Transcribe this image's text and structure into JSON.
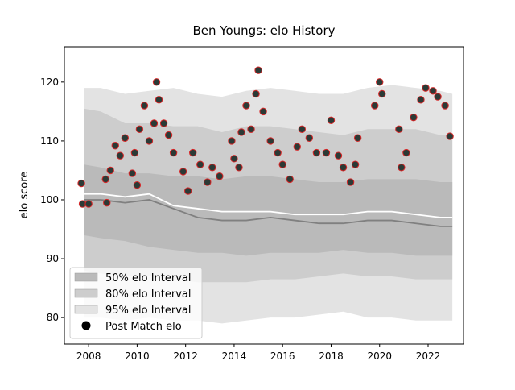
{
  "chart_data": {
    "type": "band-scatter",
    "title": "Ben Youngs: elo History",
    "ylabel": "elo score",
    "xlim": [
      2007.0,
      2023.46
    ],
    "ylim": [
      75.5,
      126.0
    ],
    "xticks": [
      2008,
      2010,
      2012,
      2014,
      2016,
      2018,
      2020,
      2022
    ],
    "yticks": [
      80,
      90,
      100,
      110,
      120
    ],
    "x": [
      2007.8,
      2008.5,
      2009.5,
      2010.5,
      2011.5,
      2012.5,
      2013.5,
      2014.5,
      2015.5,
      2016.5,
      2017.5,
      2018.5,
      2019.5,
      2020.5,
      2021.5,
      2022.5,
      2023.0
    ],
    "bands": [
      {
        "name": "95% elo Interval",
        "color": "#e3e3e3",
        "upper": [
          119,
          119,
          118,
          118.5,
          119,
          118,
          117.5,
          118.5,
          119,
          118.5,
          118,
          118,
          119,
          119.5,
          119,
          118.5,
          118
        ],
        "lower": [
          80,
          80,
          79.5,
          80,
          79.5,
          79.5,
          79,
          79.5,
          80,
          80,
          80.5,
          81,
          80,
          80,
          79.5,
          79.5,
          79.5
        ]
      },
      {
        "name": "80% elo Interval",
        "color": "#cdcdcd",
        "upper": [
          115.5,
          115,
          113,
          113,
          112.5,
          112.5,
          111.5,
          112.5,
          112.5,
          112,
          111.5,
          111,
          112,
          112,
          112,
          111,
          111
        ],
        "lower": [
          88,
          87.5,
          87,
          87,
          86.5,
          86,
          86,
          86,
          86.5,
          86.5,
          87,
          87.5,
          87,
          87,
          86.5,
          86.5,
          86.5
        ]
      },
      {
        "name": "50% elo Interval",
        "color": "#bababa",
        "upper": [
          106,
          105.5,
          104.5,
          104.5,
          104,
          104,
          103.5,
          104,
          104,
          103.5,
          103,
          103,
          103.5,
          103.5,
          103.5,
          103,
          103
        ],
        "lower": [
          94,
          93.5,
          93,
          92,
          91.5,
          91,
          91,
          90.5,
          91,
          91,
          91,
          91.5,
          91,
          91,
          90.5,
          90.5,
          90.5
        ]
      }
    ],
    "lines": [
      {
        "color": "#ffffff",
        "values": [
          101,
          101,
          100.5,
          101,
          99,
          98.5,
          98,
          98,
          98,
          97.5,
          97.5,
          97.5,
          98,
          98,
          97.5,
          97,
          97
        ]
      },
      {
        "color": "#808080",
        "values": [
          100,
          100,
          99.5,
          100,
          98.5,
          97,
          96.5,
          96.5,
          97,
          96.5,
          96,
          96,
          96.5,
          96.5,
          96,
          95.5,
          95.5
        ]
      }
    ],
    "points": {
      "name": "Post Match elo",
      "color": "#2b3a36",
      "edge_color": "#d62728",
      "x": [
        2007.7,
        2007.75,
        2008.0,
        2008.7,
        2008.75,
        2008.9,
        2009.1,
        2009.3,
        2009.5,
        2009.8,
        2009.9,
        2010.0,
        2010.1,
        2010.3,
        2010.5,
        2010.7,
        2010.8,
        2010.9,
        2011.1,
        2011.3,
        2011.5,
        2011.9,
        2012.1,
        2012.3,
        2012.6,
        2012.9,
        2013.1,
        2013.4,
        2013.9,
        2014.0,
        2014.2,
        2014.3,
        2014.5,
        2014.7,
        2014.9,
        2015.0,
        2015.2,
        2015.5,
        2015.8,
        2016.0,
        2016.3,
        2016.6,
        2016.8,
        2017.1,
        2017.4,
        2017.8,
        2018.0,
        2018.3,
        2018.5,
        2018.8,
        2019.0,
        2019.1,
        2019.8,
        2020.0,
        2020.1,
        2020.8,
        2020.9,
        2021.1,
        2021.4,
        2021.7,
        2021.9,
        2022.2,
        2022.4,
        2022.7,
        2022.9
      ],
      "y": [
        102.8,
        99.3,
        99.3,
        103.5,
        99.5,
        105,
        109.2,
        107.5,
        110.5,
        104.5,
        108,
        102.5,
        112,
        116,
        110,
        113,
        120,
        117,
        113,
        111,
        108,
        104.8,
        101.5,
        108,
        106,
        103,
        105.5,
        104,
        110,
        107,
        105.5,
        111.5,
        116,
        112,
        118,
        122,
        115,
        110,
        108,
        106,
        103.5,
        109,
        112,
        110.5,
        108,
        108,
        113.5,
        107.5,
        105.5,
        103,
        106,
        110.5,
        116,
        120,
        118,
        112,
        105.5,
        108,
        114,
        117,
        119,
        118.5,
        117.5,
        116,
        110.8
      ]
    }
  }
}
